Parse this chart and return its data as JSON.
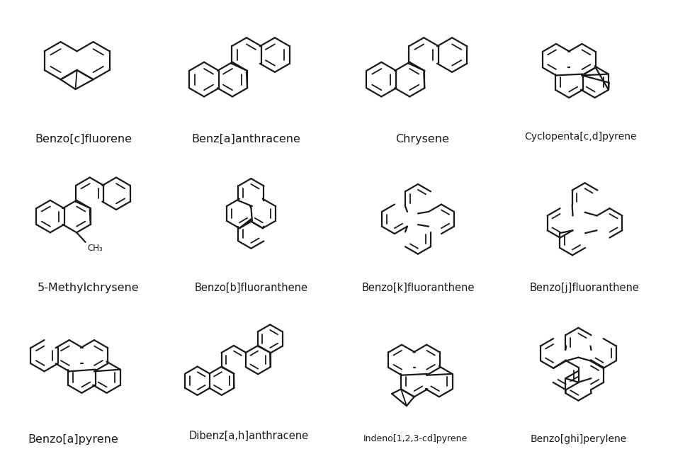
{
  "labels": [
    "Benzo[c]fluorene",
    "Benz[a]anthracene",
    "Chrysene",
    "Cyclopenta[c,d]pyrene",
    "5-Methylchrysene",
    "Benzo[b]fluoranthene",
    "Benzo[k]fluoranthene",
    "Benzo[j]fluoranthene",
    "Benzo[a]pyrene",
    "Dibenz[a,h]anthracene",
    "Indeno[1,2,3-cd]pyrene",
    "Benzo[ghi]perylene"
  ],
  "bg_color": "#ffffff",
  "line_color": "#1a1a1a",
  "label_fontsize": 11.5,
  "lw": 1.6
}
